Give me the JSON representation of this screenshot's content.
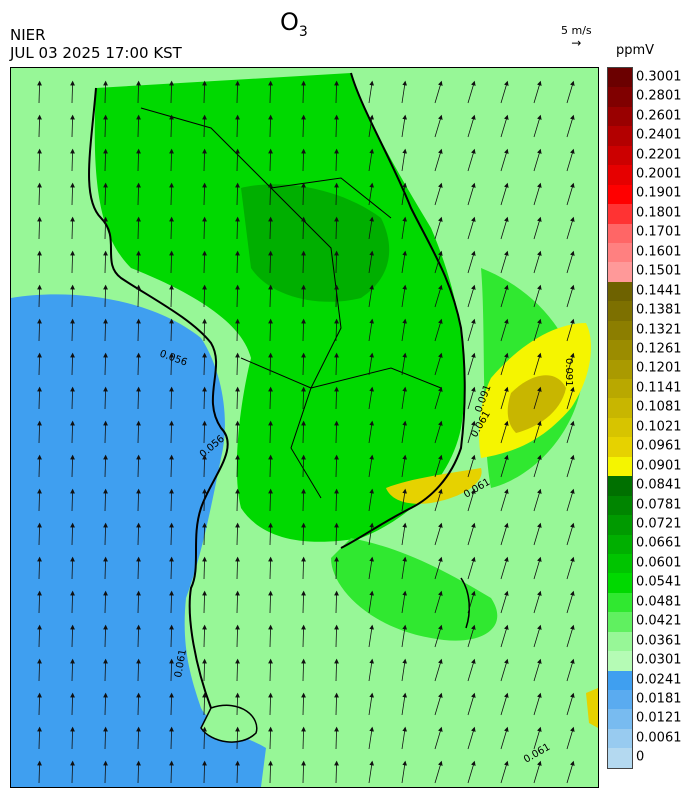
{
  "header": {
    "title_main": "O",
    "title_sub": "3",
    "organization": "NIER",
    "datetime": "JUL 03 2025 17:00 KST",
    "wind_reference": "5 m/s",
    "unit": "ppmV"
  },
  "legend": {
    "labels": [
      "0.3001",
      "0.2801",
      "0.2601",
      "0.2401",
      "0.2201",
      "0.2001",
      "0.1901",
      "0.1801",
      "0.1701",
      "0.1601",
      "0.1501",
      "0.1441",
      "0.1381",
      "0.1321",
      "0.1261",
      "0.1201",
      "0.1141",
      "0.1081",
      "0.1021",
      "0.0961",
      "0.0901",
      "0.0841",
      "0.0781",
      "0.0721",
      "0.0661",
      "0.0601",
      "0.0541",
      "0.0481",
      "0.0421",
      "0.0361",
      "0.0301",
      "0.0241",
      "0.0181",
      "0.0121",
      "0.0061",
      "0"
    ],
    "colors": [
      "#6b0000",
      "#800000",
      "#990000",
      "#b30000",
      "#cc0000",
      "#e60000",
      "#ff0000",
      "#ff3333",
      "#ff6666",
      "#ff8080",
      "#ff9999",
      "#6e6200",
      "#7d7000",
      "#8c7e00",
      "#9b8c00",
      "#aa9a00",
      "#b9a800",
      "#c8b600",
      "#d7c400",
      "#e6d200",
      "#f5f500",
      "#007000",
      "#008500",
      "#009a00",
      "#00af00",
      "#00c400",
      "#00d900",
      "#30e830",
      "#60f060",
      "#97f797",
      "#b5fbb5",
      "#3f9ff0",
      "#5aabf0",
      "#78bbf0",
      "#98cbf0",
      "#b4d9f0"
    ]
  },
  "map": {
    "contour_labels": [
      "0.056",
      "0.056",
      "0.061",
      "0.091",
      "0.091",
      "0.061",
      "0.061",
      "0.061"
    ]
  }
}
